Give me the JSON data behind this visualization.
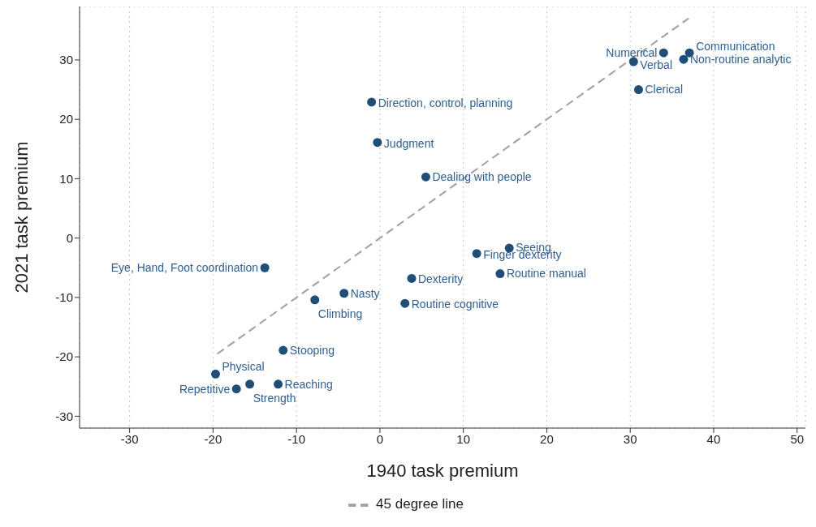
{
  "chart_data": {
    "type": "scatter",
    "xlabel": "1940 task premium",
    "ylabel": "2021 task premium",
    "xlim": [
      -36,
      51
    ],
    "ylim": [
      -32,
      39
    ],
    "xticks": [
      -30,
      -20,
      -10,
      0,
      10,
      20,
      30,
      40,
      50
    ],
    "yticks": [
      -30,
      -20,
      -10,
      0,
      10,
      20,
      30
    ],
    "grid": true,
    "legend": "bottom",
    "marker": "circle",
    "series": [
      {
        "color": "#1f4e79",
        "x": [
          37.1,
          34.0,
          30.4,
          36.4,
          31.0,
          -1.0,
          -0.3,
          5.5,
          15.5,
          11.6,
          14.4,
          3.8,
          3.0,
          -13.8,
          -4.3,
          -7.8,
          -11.6,
          -19.7,
          -17.2,
          -15.6,
          -12.2
        ],
        "values": [
          31.2,
          31.2,
          29.7,
          30.1,
          25.0,
          22.9,
          16.1,
          10.3,
          -1.7,
          -2.6,
          -6.0,
          -6.8,
          -11.0,
          -5.0,
          -9.3,
          -10.4,
          -18.9,
          -22.9,
          -25.4,
          -24.6,
          -24.6
        ]
      },
      {
        "type": "line",
        "name": "45 degree line",
        "color": "#a0a0a0",
        "line_style": "dashed",
        "marker": "none",
        "x": [
          -19.5,
          37
        ],
        "values": [
          -19.5,
          37
        ]
      }
    ],
    "annotations": [
      {
        "text": "Communication",
        "x": 37.1,
        "y": 31.2
      },
      {
        "text": "Numerical",
        "x": 34.0,
        "y": 31.2
      },
      {
        "text": "Verbal",
        "x": 30.4,
        "y": 29.7
      },
      {
        "text": "Non-routine analytic",
        "x": 36.4,
        "y": 30.1
      },
      {
        "text": "Clerical",
        "x": 31.0,
        "y": 25.0
      },
      {
        "text": "Direction, control, planning",
        "x": -1.0,
        "y": 22.9
      },
      {
        "text": "Judgment",
        "x": -0.3,
        "y": 16.1
      },
      {
        "text": "Dealing with people",
        "x": 5.5,
        "y": 10.3
      },
      {
        "text": "Seeing",
        "x": 15.5,
        "y": -1.7
      },
      {
        "text": "Finger dexterity",
        "x": 11.6,
        "y": -2.6
      },
      {
        "text": "Routine manual",
        "x": 14.4,
        "y": -6.0
      },
      {
        "text": "Dexterity",
        "x": 3.8,
        "y": -6.8
      },
      {
        "text": "Routine cognitive",
        "x": 3.0,
        "y": -11.0
      },
      {
        "text": "Eye, Hand, Foot coordination",
        "x": -13.8,
        "y": -5.0
      },
      {
        "text": "Nasty",
        "x": -4.3,
        "y": -9.3
      },
      {
        "text": "Climbing",
        "x": -7.8,
        "y": -10.4
      },
      {
        "text": "Stooping",
        "x": -11.6,
        "y": -18.9
      },
      {
        "text": "Physical",
        "x": -19.7,
        "y": -22.9
      },
      {
        "text": "Repetitive",
        "x": -17.2,
        "y": -25.4
      },
      {
        "text": "Strength",
        "x": -15.6,
        "y": -24.6
      },
      {
        "text": "Reaching",
        "x": -12.2,
        "y": -24.6
      }
    ]
  }
}
